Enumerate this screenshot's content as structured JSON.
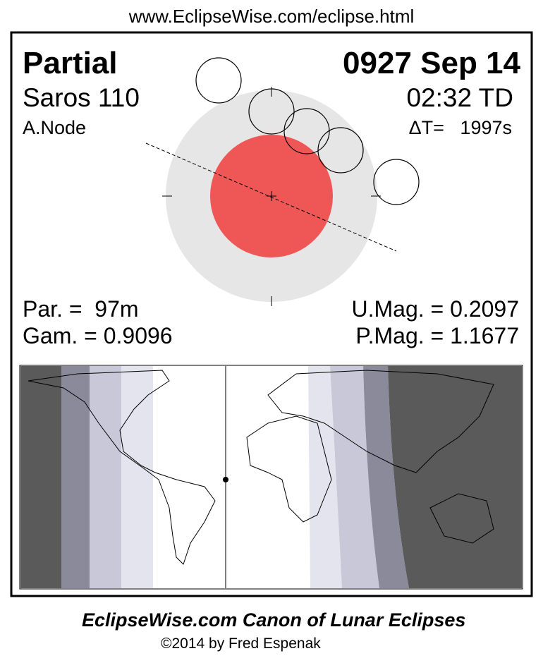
{
  "header": {
    "url": "www.EclipseWise.com/eclipse.html"
  },
  "eclipse": {
    "type": "Partial",
    "date": "0927 Sep 14",
    "saros": "Saros 110",
    "time": "02:32 TD",
    "node": "A.Node",
    "delta_t": "ΔT=   1997s"
  },
  "parameters": {
    "par": "Par. =  97m",
    "gam": "Gam. = 0.9096",
    "umag": "U.Mag. = 0.2097",
    "pmag": "P.Mag. = 1.1677"
  },
  "footer": {
    "title": "EclipseWise.com Canon of Lunar Eclipses",
    "copyright": "©2014 by Fred Espenak"
  }
}
